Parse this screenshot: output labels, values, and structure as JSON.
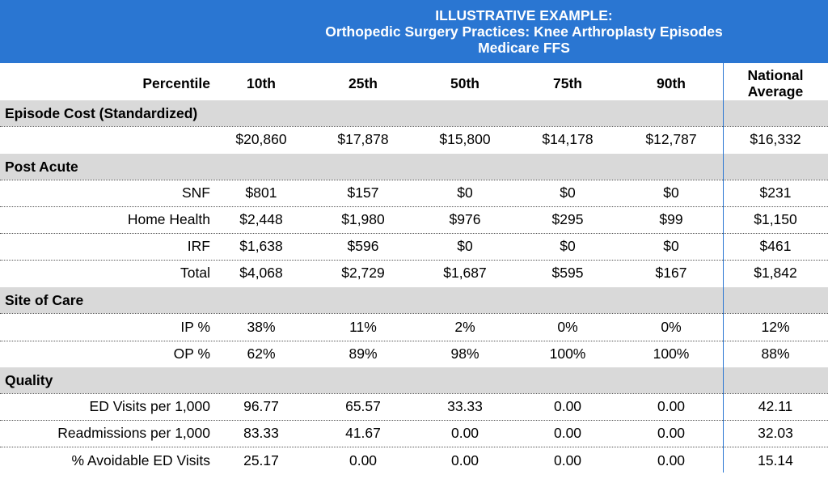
{
  "title": {
    "line1": "ILLUSTRATIVE EXAMPLE:",
    "line2": "Orthopedic Surgery Practices: Knee Arthroplasty Episodes",
    "line3": "Medicare FFS"
  },
  "header": {
    "label": "Percentile",
    "cols": [
      "10th",
      "25th",
      "50th",
      "75th",
      "90th"
    ],
    "avg_line1": "National",
    "avg_line2": "Average"
  },
  "sections": {
    "episode_cost": "Episode Cost (Standardized)",
    "post_acute": "Post Acute",
    "site_of_care": "Site of Care",
    "quality": "Quality"
  },
  "rows": {
    "episode": {
      "label": "",
      "values": [
        "$20,860",
        "$17,878",
        "$15,800",
        "$14,178",
        "$12,787",
        "$16,332"
      ]
    },
    "snf": {
      "label": "SNF",
      "values": [
        "$801",
        "$157",
        "$0",
        "$0",
        "$0",
        "$231"
      ]
    },
    "home": {
      "label": "Home Health",
      "values": [
        "$2,448",
        "$1,980",
        "$976",
        "$295",
        "$99",
        "$1,150"
      ]
    },
    "irf": {
      "label": "IRF",
      "values": [
        "$1,638",
        "$596",
        "$0",
        "$0",
        "$0",
        "$461"
      ]
    },
    "total": {
      "label": "Total",
      "values": [
        "$4,068",
        "$2,729",
        "$1,687",
        "$595",
        "$167",
        "$1,842"
      ]
    },
    "ip": {
      "label": "IP %",
      "values": [
        "38%",
        "11%",
        "2%",
        "0%",
        "0%",
        "12%"
      ]
    },
    "op": {
      "label": "OP %",
      "values": [
        "62%",
        "89%",
        "98%",
        "100%",
        "100%",
        "88%"
      ]
    },
    "ed": {
      "label": "ED Visits per 1,000",
      "values": [
        "96.77",
        "65.57",
        "33.33",
        "0.00",
        "0.00",
        "42.11"
      ]
    },
    "readm": {
      "label": "Readmissions per 1,000",
      "values": [
        "83.33",
        "41.67",
        "0.00",
        "0.00",
        "0.00",
        "32.03"
      ]
    },
    "avoid": {
      "label": "% Avoidable ED Visits",
      "values": [
        "25.17",
        "0.00",
        "0.00",
        "0.00",
        "0.00",
        "15.14"
      ]
    }
  },
  "colors": {
    "banner": "#2a76d2",
    "section": "#d9d9d9"
  }
}
